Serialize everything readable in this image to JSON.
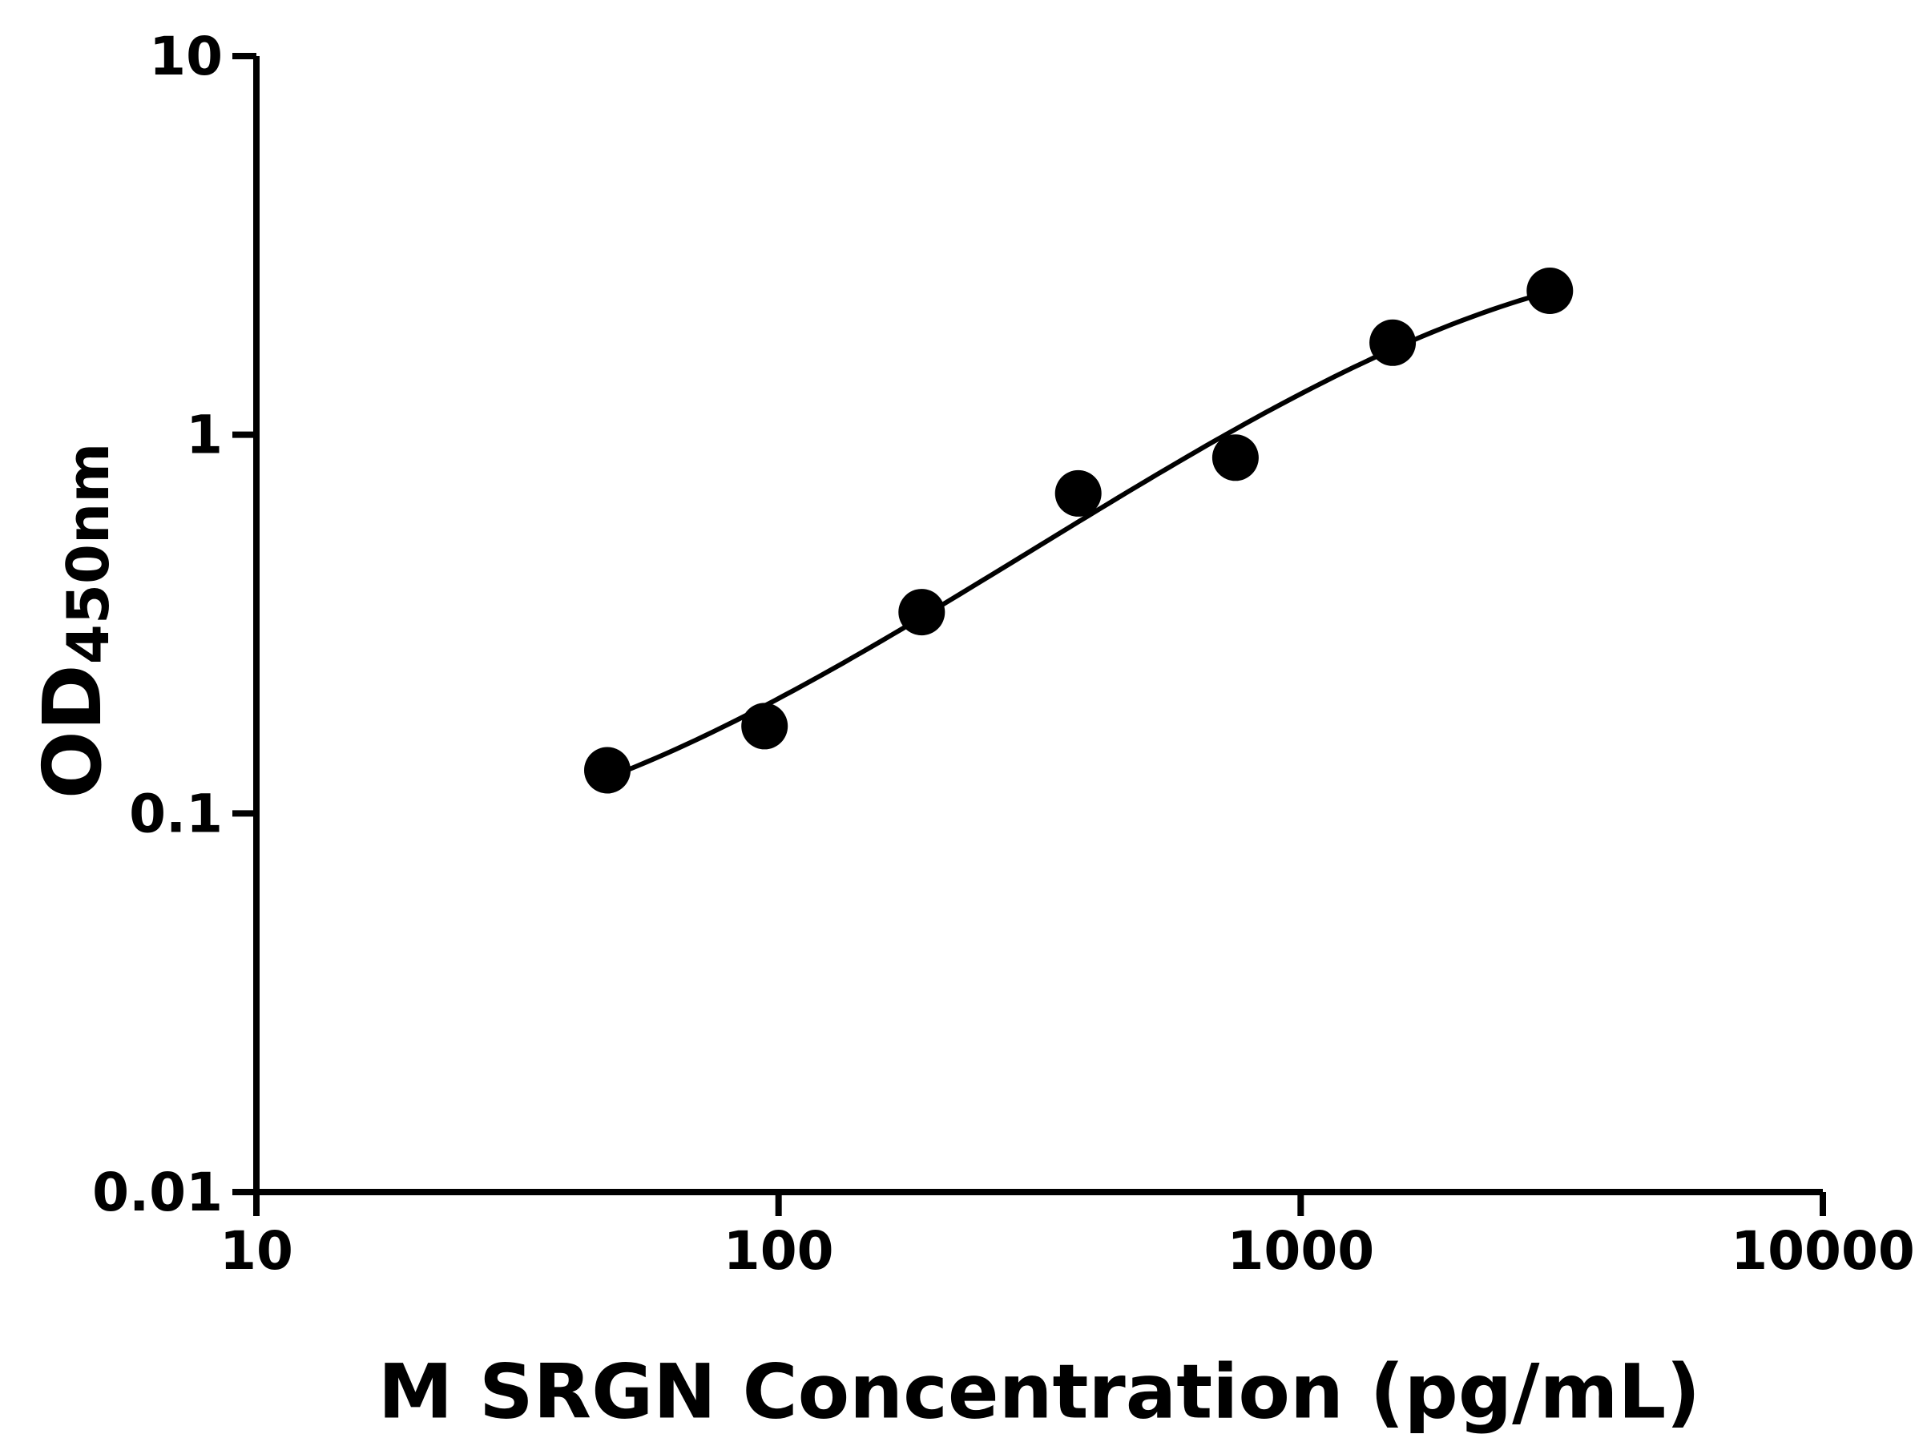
{
  "figure": {
    "background_color": "#ffffff",
    "ink_color": "#000000"
  },
  "chart_data": {
    "type": "scatter",
    "title": "",
    "xlabel": "M SRGN Concentration (pg/mL)",
    "ylabel_main": "OD",
    "ylabel_sub": "450nm",
    "x_scale": "log10",
    "y_scale": "log10",
    "xlim": [
      10,
      10000
    ],
    "ylim": [
      0.01,
      10
    ],
    "x_ticks": [
      {
        "value": 10,
        "label": "10"
      },
      {
        "value": 100,
        "label": "100"
      },
      {
        "value": 1000,
        "label": "1000"
      },
      {
        "value": 10000,
        "label": "10000"
      }
    ],
    "y_ticks": [
      {
        "value": 10,
        "label": "10"
      },
      {
        "value": 1,
        "label": "1"
      },
      {
        "value": 0.1,
        "label": "0.1"
      },
      {
        "value": 0.01,
        "label": "0.01"
      }
    ],
    "grid": false,
    "legend": false,
    "series": [
      {
        "marker": "filled-circle",
        "marker_color": "#000000",
        "line_color": "#000000",
        "has_fit_curve": true,
        "points": [
          {
            "x": 47,
            "y": 0.13
          },
          {
            "x": 94,
            "y": 0.17
          },
          {
            "x": 188,
            "y": 0.34
          },
          {
            "x": 375,
            "y": 0.7
          },
          {
            "x": 750,
            "y": 0.87
          },
          {
            "x": 1500,
            "y": 1.75
          },
          {
            "x": 3000,
            "y": 2.4
          }
        ]
      }
    ]
  }
}
